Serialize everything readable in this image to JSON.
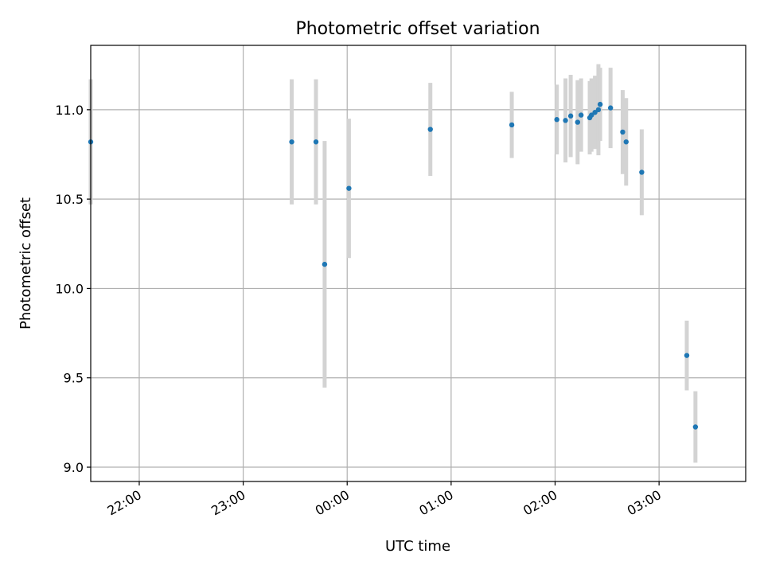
{
  "chart_data": {
    "type": "scatter",
    "title": "Photometric offset variation",
    "xlabel": "UTC time",
    "ylabel": "Photometric offset",
    "x_ticks": [
      {
        "label": "22:00",
        "minutes": -120
      },
      {
        "label": "23:00",
        "minutes": -60
      },
      {
        "label": "00:00",
        "minutes": 0
      },
      {
        "label": "01:00",
        "minutes": 60
      },
      {
        "label": "02:00",
        "minutes": 120
      },
      {
        "label": "03:00",
        "minutes": 180
      }
    ],
    "y_ticks": [
      "9.0",
      "9.5",
      "10.0",
      "10.5",
      "11.0"
    ],
    "xlim": [
      "21:32",
      "03:50"
    ],
    "ylim": [
      8.92,
      11.36
    ],
    "grid": true,
    "colors": {
      "point": "#1f77b4",
      "errorbar": "#d3d3d3"
    },
    "series": [
      {
        "points": [
          {
            "time": "21:32",
            "y": 10.82,
            "err": 0.35
          },
          {
            "time": "23:28",
            "y": 10.82,
            "err": 0.35
          },
          {
            "time": "23:42",
            "y": 10.82,
            "err": 0.35
          },
          {
            "time": "23:47",
            "y": 10.135,
            "err": 0.69
          },
          {
            "time": "00:01",
            "y": 10.56,
            "err": 0.39
          },
          {
            "time": "00:48",
            "y": 10.89,
            "err": 0.26
          },
          {
            "time": "01:35",
            "y": 10.915,
            "err": 0.185
          },
          {
            "time": "02:01",
            "y": 10.945,
            "err": 0.195
          },
          {
            "time": "02:06",
            "y": 10.94,
            "err": 0.235
          },
          {
            "time": "02:09",
            "y": 10.965,
            "err": 0.23
          },
          {
            "time": "02:13",
            "y": 10.93,
            "err": 0.235
          },
          {
            "time": "02:15",
            "y": 10.97,
            "err": 0.205
          },
          {
            "time": "02:20",
            "y": 10.955,
            "err": 0.205
          },
          {
            "time": "02:21",
            "y": 10.97,
            "err": 0.205
          },
          {
            "time": "02:23",
            "y": 10.985,
            "err": 0.205
          },
          {
            "time": "02:25",
            "y": 11.0,
            "err": 0.255
          },
          {
            "time": "02:26",
            "y": 11.03,
            "err": 0.205
          },
          {
            "time": "02:32",
            "y": 11.01,
            "err": 0.225
          },
          {
            "time": "02:39",
            "y": 10.875,
            "err": 0.235
          },
          {
            "time": "02:41",
            "y": 10.82,
            "err": 0.245
          },
          {
            "time": "02:50",
            "y": 10.65,
            "err": 0.24
          },
          {
            "time": "03:16",
            "y": 9.625,
            "err": 0.195
          },
          {
            "time": "03:21",
            "y": 9.225,
            "err": 0.2
          }
        ]
      }
    ]
  }
}
